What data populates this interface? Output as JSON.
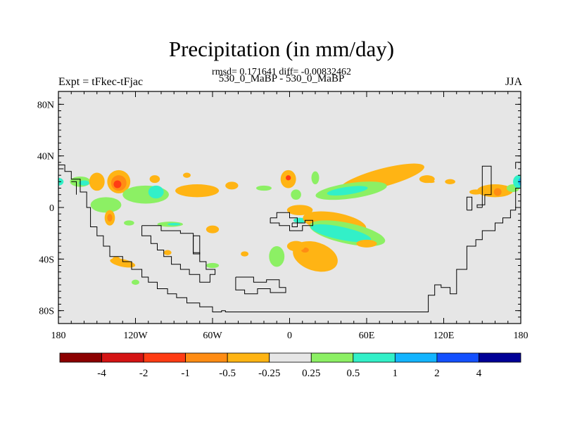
{
  "header": {
    "title": "Precipitation (in mm/day)",
    "stats_line": "rmsd= 0.171641 diff= -0.00832462",
    "left_label": "Expt = tFkec-tFjac",
    "center_label": "530_0_MaBP - 530_0_MaBP",
    "right_label": "JJA"
  },
  "chart_data": {
    "type": "heatmap",
    "title": "Precipitation (in mm/day)",
    "projection": "cylindrical equidistant",
    "xlim": [
      -180,
      180
    ],
    "ylim": [
      -90,
      90
    ],
    "x_ticks": [
      {
        "value": -180,
        "label": "180"
      },
      {
        "value": -120,
        "label": "120W"
      },
      {
        "value": -60,
        "label": "60W"
      },
      {
        "value": 0,
        "label": "0"
      },
      {
        "value": 60,
        "label": "60E"
      },
      {
        "value": 120,
        "label": "120E"
      },
      {
        "value": 180,
        "label": "180"
      }
    ],
    "y_ticks": [
      {
        "value": 80,
        "label": "80N"
      },
      {
        "value": 40,
        "label": "40N"
      },
      {
        "value": 0,
        "label": "0"
      },
      {
        "value": -40,
        "label": "40S"
      },
      {
        "value": -80,
        "label": "80S"
      }
    ],
    "background_color": "#e6e6e6",
    "colorbar": {
      "levels": [
        "-4",
        "-2",
        "-1",
        "-0.5",
        "-0.25",
        "0.25",
        "0.5",
        "1",
        "2",
        "4"
      ],
      "colors": [
        "#8b0000",
        "#d41414",
        "#ff3c14",
        "#ff8c14",
        "#ffb414",
        "#e6e6e6",
        "#8cf064",
        "#32f0c8",
        "#14b4ff",
        "#1450ff",
        "#000096"
      ]
    },
    "continent_outlines": [
      [
        [
          -180,
          33
        ],
        [
          -175,
          33
        ],
        [
          -175,
          28
        ],
        [
          -170,
          28
        ],
        [
          -170,
          22
        ],
        [
          -163,
          22
        ],
        [
          -163,
          12
        ],
        [
          -158,
          12
        ],
        [
          -158,
          0
        ],
        [
          -155,
          0
        ],
        [
          -155,
          -15
        ],
        [
          -150,
          -15
        ],
        [
          -150,
          -22
        ],
        [
          -145,
          -22
        ],
        [
          -145,
          -30
        ],
        [
          -140,
          -30
        ],
        [
          -140,
          -38
        ],
        [
          -130,
          -38
        ],
        [
          -130,
          -42
        ],
        [
          -123,
          -42
        ],
        [
          -123,
          -48
        ],
        [
          -115,
          -48
        ],
        [
          -115,
          -54
        ],
        [
          -110,
          -54
        ],
        [
          -110,
          -58
        ],
        [
          -103,
          -58
        ],
        [
          -103,
          -63
        ],
        [
          -95,
          -63
        ],
        [
          -95,
          -67
        ],
        [
          -88,
          -67
        ],
        [
          -88,
          -70
        ],
        [
          -80,
          -70
        ],
        [
          -80,
          -74
        ],
        [
          -70,
          -74
        ],
        [
          -70,
          -77
        ],
        [
          -60,
          -77
        ],
        [
          -60,
          -81
        ],
        [
          -53,
          -81
        ],
        [
          -53,
          -80
        ],
        [
          -50,
          -80
        ],
        [
          -50,
          -81
        ],
        [
          -40,
          -81
        ],
        [
          -10,
          -81
        ],
        [
          30,
          -81
        ],
        [
          60,
          -81
        ],
        [
          90,
          -81
        ],
        [
          108,
          -81
        ],
        [
          108,
          -68
        ],
        [
          113,
          -68
        ],
        [
          113,
          -60
        ],
        [
          118,
          -60
        ],
        [
          118,
          -62
        ],
        [
          125,
          -62
        ],
        [
          125,
          -67
        ],
        [
          130,
          -67
        ],
        [
          130,
          -48
        ],
        [
          138,
          -48
        ],
        [
          138,
          -30
        ],
        [
          145,
          -30
        ],
        [
          145,
          -25
        ],
        [
          150,
          -25
        ],
        [
          150,
          -18
        ],
        [
          160,
          -18
        ],
        [
          160,
          -12
        ],
        [
          166,
          -12
        ],
        [
          166,
          -8
        ],
        [
          172,
          -8
        ],
        [
          172,
          -2
        ],
        [
          176,
          -2
        ],
        [
          176,
          15
        ],
        [
          180,
          15
        ]
      ],
      [
        [
          180,
          35
        ],
        [
          176,
          35
        ],
        [
          176,
          30
        ]
      ],
      [
        [
          -180,
          30
        ],
        [
          -176,
          30
        ]
      ],
      [
        [
          -170,
          20
        ],
        [
          -166,
          20
        ],
        [
          -166,
          10
        ]
      ],
      [
        [
          150,
          0
        ],
        [
          150,
          32
        ],
        [
          157,
          32
        ],
        [
          157,
          10
        ],
        [
          152,
          10
        ],
        [
          152,
          2
        ],
        [
          146,
          2
        ],
        [
          146,
          0
        ],
        [
          150,
          0
        ]
      ],
      [
        [
          138,
          -2
        ],
        [
          142,
          -2
        ],
        [
          142,
          8
        ],
        [
          138,
          8
        ],
        [
          138,
          -2
        ]
      ],
      [
        [
          -115,
          -14
        ],
        [
          -100,
          -14
        ],
        [
          -100,
          -18
        ],
        [
          -85,
          -18
        ],
        [
          -85,
          -20
        ],
        [
          -75,
          -20
        ],
        [
          -75,
          -35
        ],
        [
          -70,
          -35
        ],
        [
          -70,
          -42
        ],
        [
          -65,
          -42
        ],
        [
          -65,
          -48
        ],
        [
          -58,
          -48
        ],
        [
          -58,
          -52
        ],
        [
          -62,
          -52
        ],
        [
          -62,
          -58
        ],
        [
          -70,
          -58
        ],
        [
          -70,
          -52
        ],
        [
          -78,
          -52
        ],
        [
          -78,
          -48
        ],
        [
          -85,
          -48
        ],
        [
          -85,
          -44
        ],
        [
          -92,
          -44
        ],
        [
          -92,
          -38
        ],
        [
          -98,
          -38
        ],
        [
          -98,
          -33
        ],
        [
          -103,
          -33
        ],
        [
          -103,
          -28
        ],
        [
          -108,
          -28
        ],
        [
          -108,
          -22
        ],
        [
          -115,
          -22
        ],
        [
          -115,
          -14
        ]
      ],
      [
        [
          -75,
          -22
        ],
        [
          -70,
          -22
        ],
        [
          -70,
          -36
        ],
        [
          -75,
          -36
        ],
        [
          -75,
          -22
        ]
      ],
      [
        [
          -42,
          -54
        ],
        [
          -28,
          -54
        ],
        [
          -28,
          -58
        ],
        [
          -18,
          -58
        ],
        [
          -18,
          -56
        ],
        [
          -8,
          -56
        ],
        [
          -8,
          -62
        ],
        [
          -3,
          -62
        ],
        [
          -3,
          -66
        ],
        [
          -15,
          -66
        ],
        [
          -15,
          -63
        ],
        [
          -25,
          -63
        ],
        [
          -25,
          -67
        ],
        [
          -35,
          -67
        ],
        [
          -35,
          -64
        ],
        [
          -42,
          -64
        ],
        [
          -42,
          -54
        ]
      ],
      [
        [
          -15,
          -8
        ],
        [
          -10,
          -8
        ],
        [
          -10,
          -4
        ],
        [
          0,
          -4
        ],
        [
          0,
          -8
        ],
        [
          6,
          -8
        ],
        [
          6,
          -12
        ],
        [
          12,
          -12
        ],
        [
          12,
          -10
        ],
        [
          18,
          -10
        ],
        [
          18,
          -14
        ],
        [
          10,
          -14
        ],
        [
          10,
          -18
        ],
        [
          0,
          -18
        ],
        [
          0,
          -14
        ],
        [
          -8,
          -14
        ],
        [
          -8,
          -12
        ],
        [
          -15,
          -12
        ],
        [
          -15,
          -8
        ]
      ],
      [
        [
          2,
          -12
        ],
        [
          6,
          -12
        ],
        [
          6,
          -15
        ],
        [
          2,
          -15
        ],
        [
          2,
          -12
        ]
      ]
    ],
    "anomaly_patches": [
      {
        "lon": -180,
        "lat": 20,
        "rx": 4,
        "ry": 3,
        "class": "0.5 to 1"
      },
      {
        "lon": -163,
        "lat": 20,
        "rx": 8,
        "ry": 4,
        "class": "0.25 to 0.5"
      },
      {
        "lon": -160,
        "lat": 19,
        "rx": 4,
        "ry": 2,
        "class": "0.5 to 1"
      },
      {
        "lon": -150,
        "lat": 20,
        "rx": 6,
        "ry": 7,
        "class": "-0.5 to -0.25"
      },
      {
        "lon": -133,
        "lat": 20,
        "rx": 9,
        "ry": 9,
        "class": "-0.5 to -0.25"
      },
      {
        "lon": -133,
        "lat": 19,
        "rx": 6,
        "ry": 6,
        "class": "-1 to -0.5"
      },
      {
        "lon": -134,
        "lat": 18,
        "rx": 3,
        "ry": 3,
        "class": "-2 to -1"
      },
      {
        "lon": -105,
        "lat": 22,
        "rx": 4,
        "ry": 3,
        "class": "-0.5 to -0.25"
      },
      {
        "lon": -80,
        "lat": 25,
        "rx": 3,
        "ry": 2,
        "class": "-0.5 to -0.25"
      },
      {
        "lon": -72,
        "lat": 13,
        "rx": 17,
        "ry": 5,
        "class": "-0.5 to -0.25"
      },
      {
        "lon": -45,
        "lat": 17,
        "rx": 5,
        "ry": 3,
        "class": "-0.5 to -0.25"
      },
      {
        "lon": -112,
        "lat": 10,
        "rx": 18,
        "ry": 7,
        "class": "0.25 to 0.5"
      },
      {
        "lon": -104,
        "lat": 12,
        "rx": 6,
        "ry": 5,
        "class": "0.5 to 1"
      },
      {
        "lon": -143,
        "lat": 2,
        "rx": 12,
        "ry": 6,
        "class": "0.25 to 0.5"
      },
      {
        "lon": -140,
        "lat": -8,
        "rx": 4,
        "ry": 6,
        "class": "-0.5 to -0.25"
      },
      {
        "lon": -140,
        "lat": -8,
        "rx": 2,
        "ry": 3,
        "class": "-1 to -0.5"
      },
      {
        "lon": -125,
        "lat": -12,
        "rx": 4,
        "ry": 2,
        "class": "0.25 to 0.5"
      },
      {
        "lon": -93,
        "lat": -13,
        "rx": 10,
        "ry": 2,
        "class": "0.25 to 0.5"
      },
      {
        "lon": -90,
        "lat": -13,
        "rx": 5,
        "ry": 1,
        "class": "0.5 to 1"
      },
      {
        "lon": -60,
        "lat": -17,
        "rx": 5,
        "ry": 3,
        "class": "-0.5 to -0.25"
      },
      {
        "lon": -20,
        "lat": 15,
        "rx": 6,
        "ry": 2,
        "class": "0.25 to 0.5"
      },
      {
        "lon": 5,
        "lat": 10,
        "rx": 4,
        "ry": 4,
        "class": "0.25 to 0.5"
      },
      {
        "lon": -1,
        "lat": 22,
        "rx": 6,
        "ry": 7,
        "class": "-0.5 to -0.25"
      },
      {
        "lon": -1,
        "lat": 23,
        "rx": 2,
        "ry": 2,
        "class": "-2 to -1"
      },
      {
        "lon": 20,
        "lat": 23,
        "rx": 3,
        "ry": 5,
        "class": "0.25 to 0.5"
      },
      {
        "lon": 25,
        "lat": 10,
        "rx": 4,
        "ry": 2,
        "class": "-0.5 to -0.25"
      },
      {
        "lon": 72,
        "lat": 23,
        "rx": 34,
        "ry": 7,
        "class": "-0.5 to -0.25",
        "rot": -15
      },
      {
        "lon": 48,
        "lat": 13,
        "rx": 28,
        "ry": 6,
        "class": "0.25 to 0.5",
        "rot": -8
      },
      {
        "lon": 45,
        "lat": 13,
        "rx": 16,
        "ry": 3,
        "class": "0.5 to 1",
        "rot": -8
      },
      {
        "lon": 107,
        "lat": 22,
        "rx": 6,
        "ry": 3,
        "class": "-0.5 to -0.25"
      },
      {
        "lon": 125,
        "lat": 20,
        "rx": 4,
        "ry": 2,
        "class": "-0.5 to -0.25"
      },
      {
        "lon": 160,
        "lat": 13,
        "rx": 14,
        "ry": 5,
        "class": "-0.5 to -0.25"
      },
      {
        "lon": 162,
        "lat": 12,
        "rx": 3,
        "ry": 3,
        "class": "-1 to -0.5"
      },
      {
        "lon": 174,
        "lat": 15,
        "rx": 5,
        "ry": 3,
        "class": "0.25 to 0.5"
      },
      {
        "lon": 178,
        "lat": 20,
        "rx": 4,
        "ry": 5,
        "class": "0.5 to 1"
      },
      {
        "lon": 180,
        "lat": 20,
        "rx": 2,
        "ry": 3,
        "class": "1 to 2"
      },
      {
        "lon": 145,
        "lat": 12,
        "rx": 5,
        "ry": 2,
        "class": "-0.5 to -0.25"
      },
      {
        "lon": 8,
        "lat": -2,
        "rx": 10,
        "ry": 4,
        "class": "-0.5 to -0.25"
      },
      {
        "lon": 8,
        "lat": -10,
        "rx": 5,
        "ry": 2,
        "class": "0.5 to 1"
      },
      {
        "lon": 35,
        "lat": -12,
        "rx": 25,
        "ry": 8,
        "class": "-0.5 to -0.25",
        "rot": 10
      },
      {
        "lon": 45,
        "lat": -20,
        "rx": 30,
        "ry": 8,
        "class": "0.25 to 0.5",
        "rot": 12
      },
      {
        "lon": 40,
        "lat": -20,
        "rx": 24,
        "ry": 5,
        "class": "0.5 to 1",
        "rot": 12
      },
      {
        "lon": 60,
        "lat": -28,
        "rx": 8,
        "ry": 3,
        "class": "-0.5 to -0.25"
      },
      {
        "lon": 20,
        "lat": -38,
        "rx": 18,
        "ry": 11,
        "class": "-0.5 to -0.25",
        "rot": 18
      },
      {
        "lon": 12,
        "lat": -33,
        "rx": 3,
        "ry": 2,
        "class": "-1 to -0.5"
      },
      {
        "lon": 5,
        "lat": -30,
        "rx": 7,
        "ry": 4,
        "class": "-0.5 to -0.25"
      },
      {
        "lon": -10,
        "lat": -38,
        "rx": 6,
        "ry": 8,
        "class": "0.25 to 0.5"
      },
      {
        "lon": -60,
        "lat": -45,
        "rx": 5,
        "ry": 2,
        "class": "0.25 to 0.5"
      },
      {
        "lon": -35,
        "lat": -36,
        "rx": 3,
        "ry": 2,
        "class": "-0.5 to -0.25"
      },
      {
        "lon": -130,
        "lat": -43,
        "rx": 10,
        "ry": 3,
        "class": "-0.5 to -0.25",
        "rot": 12
      },
      {
        "lon": -135,
        "lat": -40,
        "rx": 3,
        "ry": 2,
        "class": "-0.5 to -0.25"
      },
      {
        "lon": -120,
        "lat": -58,
        "rx": 3,
        "ry": 2,
        "class": "0.25 to 0.5"
      },
      {
        "lon": -95,
        "lat": -35,
        "rx": 3,
        "ry": 2,
        "class": "-0.5 to -0.25"
      },
      {
        "lon": 110,
        "lat": 20,
        "rx": 3,
        "ry": 1,
        "class": "-0.5 to -0.25"
      }
    ]
  }
}
